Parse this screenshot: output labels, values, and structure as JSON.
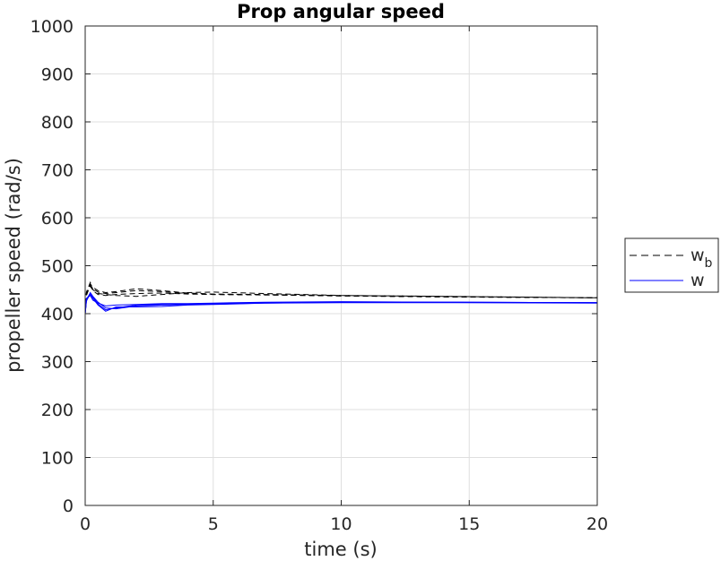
{
  "chart_data": {
    "type": "line",
    "title": "Prop angular speed",
    "xlabel": "time (s)",
    "ylabel": "propeller speed (rad/s)",
    "xlim": [
      0,
      20
    ],
    "ylim": [
      0,
      1000
    ],
    "xticks": [
      0,
      5,
      10,
      15,
      20
    ],
    "yticks": [
      0,
      100,
      200,
      300,
      400,
      500,
      600,
      700,
      800,
      900,
      1000
    ],
    "grid": true,
    "legend_position": "outside-right",
    "legend": [
      {
        "label": "w",
        "subscript": "b",
        "style": "dashed",
        "color": "#000000"
      },
      {
        "label": "w",
        "subscript": "",
        "style": "solid",
        "color": "#0000ff"
      }
    ],
    "series": [
      {
        "group": "w_b",
        "style": "dashed",
        "color": "#000000",
        "x": [
          0,
          0.05,
          0.2,
          0.3,
          0.5,
          0.8,
          1.2,
          2,
          3,
          4,
          5,
          7,
          10,
          14,
          20
        ],
        "y": [
          420,
          440,
          462,
          455,
          448,
          444,
          446,
          452,
          448,
          443,
          441,
          440,
          438,
          436,
          433
        ]
      },
      {
        "group": "w_b",
        "style": "dashed",
        "color": "#000000",
        "x": [
          0,
          0.05,
          0.2,
          0.3,
          0.5,
          0.8,
          1.2,
          2,
          3,
          4,
          5,
          7,
          10,
          14,
          20
        ],
        "y": [
          420,
          445,
          465,
          450,
          442,
          440,
          438,
          436,
          440,
          444,
          445,
          442,
          438,
          436,
          433
        ]
      },
      {
        "group": "w_b",
        "style": "dashed",
        "color": "#000000",
        "x": [
          0,
          0.05,
          0.2,
          0.3,
          0.5,
          0.8,
          1.2,
          2,
          3,
          4,
          5,
          7,
          10,
          14,
          20
        ],
        "y": [
          420,
          438,
          460,
          452,
          445,
          442,
          444,
          448,
          446,
          442,
          440,
          439,
          437,
          435,
          433
        ]
      },
      {
        "group": "w_b",
        "style": "dashed",
        "color": "#000000",
        "x": [
          0,
          0.05,
          0.2,
          0.3,
          0.5,
          0.8,
          1.2,
          2,
          3,
          4,
          5,
          7,
          10,
          14,
          20
        ],
        "y": [
          420,
          442,
          458,
          448,
          440,
          438,
          440,
          442,
          443,
          441,
          440,
          439,
          437,
          435,
          433
        ]
      },
      {
        "group": "w",
        "style": "solid",
        "color": "#0000ff",
        "x": [
          0,
          0.05,
          0.2,
          0.3,
          0.5,
          0.8,
          1.2,
          2,
          3,
          4,
          5,
          7,
          10,
          14,
          20
        ],
        "y": [
          400,
          430,
          443,
          435,
          420,
          408,
          412,
          418,
          419,
          420,
          421,
          423,
          424,
          424,
          423
        ]
      },
      {
        "group": "w",
        "style": "solid",
        "color": "#0000ff",
        "x": [
          0,
          0.05,
          0.2,
          0.3,
          0.5,
          0.8,
          1.2,
          2,
          3,
          4,
          5,
          7,
          10,
          14,
          20
        ],
        "y": [
          400,
          428,
          440,
          432,
          418,
          405,
          414,
          414,
          415,
          418,
          419,
          422,
          424,
          424,
          423
        ]
      },
      {
        "group": "w",
        "style": "solid",
        "color": "#0000ff",
        "x": [
          0,
          0.05,
          0.2,
          0.3,
          0.5,
          0.8,
          1.2,
          2,
          3,
          4,
          5,
          7,
          10,
          14,
          20
        ],
        "y": [
          400,
          432,
          438,
          428,
          422,
          416,
          418,
          419,
          421,
          421,
          422,
          424,
          425,
          424,
          423
        ]
      },
      {
        "group": "w",
        "style": "solid",
        "color": "#0000ff",
        "x": [
          0,
          0.05,
          0.2,
          0.3,
          0.5,
          0.8,
          1.2,
          2,
          3,
          4,
          5,
          7,
          10,
          14,
          20
        ],
        "y": [
          400,
          426,
          444,
          436,
          424,
          412,
          410,
          416,
          418,
          419,
          420,
          422,
          423,
          423,
          422
        ]
      }
    ]
  }
}
